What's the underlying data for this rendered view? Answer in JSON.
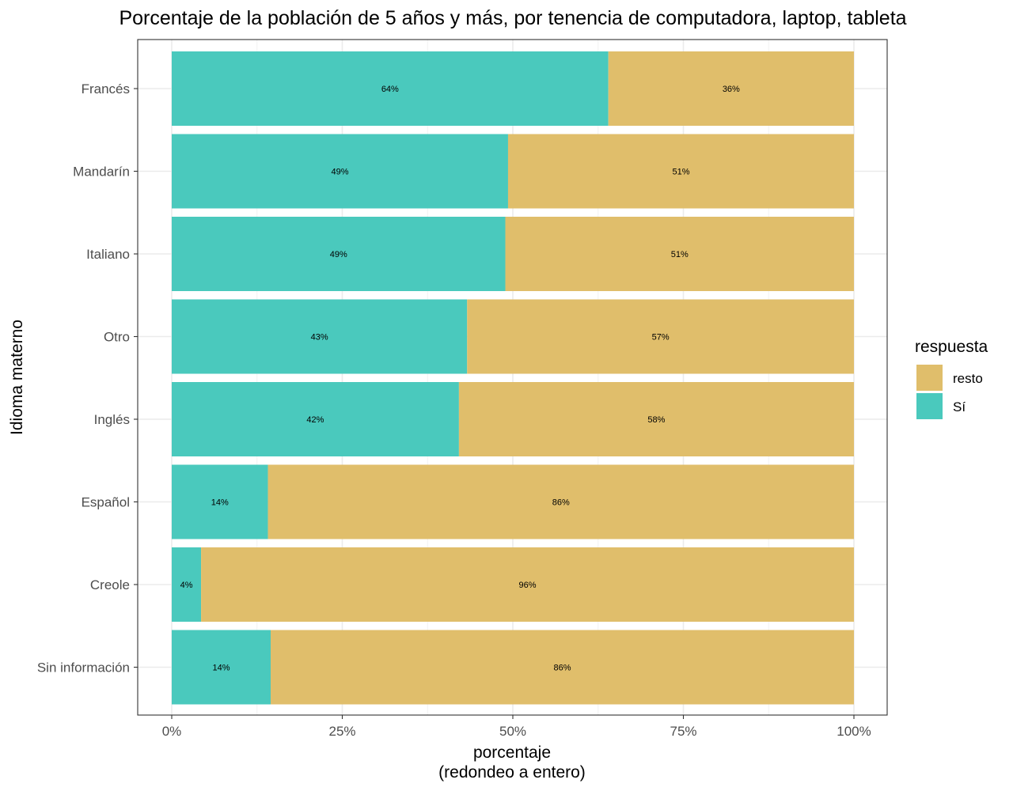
{
  "chart_data": {
    "type": "bar",
    "orientation": "horizontal",
    "stacked": true,
    "title": "Porcentaje de la población de 5 años y más, por tenencia de computadora, laptop, tableta",
    "xlabel": "porcentaje",
    "xlabel_sub": "(redondeo a entero)",
    "ylabel": "Idioma materno",
    "xlim": [
      0,
      100
    ],
    "x_ticks": [
      "0%",
      "25%",
      "50%",
      "75%",
      "100%"
    ],
    "grid": true,
    "legend_position": "right",
    "legend_title": "respuesta",
    "legend_entries": [
      "resto",
      "Sí"
    ],
    "colors": {
      "Sí": "#4ac9bd",
      "resto": "#e0be6b"
    },
    "categories": [
      "Francés",
      "Mandarín",
      "Italiano",
      "Otro",
      "Inglés",
      "Español",
      "Creole",
      "Sin información"
    ],
    "series": [
      {
        "name": "Sí",
        "values": [
          64,
          49.3,
          48.9,
          43.3,
          42.1,
          14.1,
          4.3,
          14.5
        ],
        "labels": [
          "64%",
          "49%",
          "49%",
          "43%",
          "42%",
          "14%",
          "4%",
          "14%"
        ]
      },
      {
        "name": "resto",
        "values": [
          36,
          50.7,
          51.1,
          56.7,
          57.9,
          85.9,
          95.7,
          85.5
        ],
        "labels": [
          "36%",
          "51%",
          "51%",
          "57%",
          "58%",
          "86%",
          "96%",
          "86%"
        ]
      }
    ]
  }
}
